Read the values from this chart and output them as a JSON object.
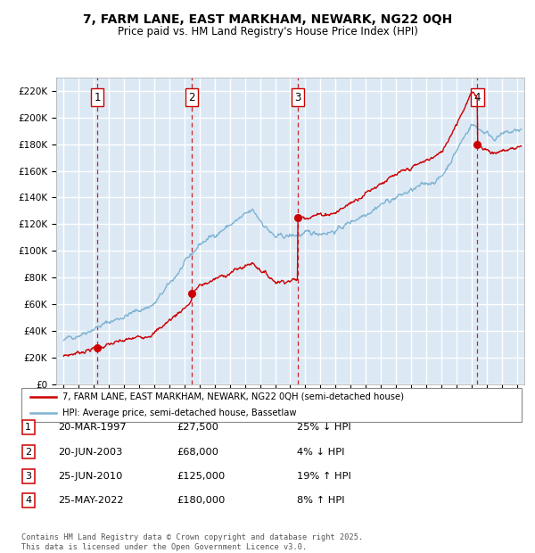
{
  "title": "7, FARM LANE, EAST MARKHAM, NEWARK, NG22 0QH",
  "subtitle": "Price paid vs. HM Land Registry's House Price Index (HPI)",
  "red_label": "7, FARM LANE, EAST MARKHAM, NEWARK, NG22 0QH (semi-detached house)",
  "blue_label": "HPI: Average price, semi-detached house, Bassetlaw",
  "footnote": "Contains HM Land Registry data © Crown copyright and database right 2025.\nThis data is licensed under the Open Government Licence v3.0.",
  "transactions": [
    {
      "num": 1,
      "date": "20-MAR-1997",
      "price": 27500,
      "pct": "25%",
      "dir": "↓",
      "year": 1997.22
    },
    {
      "num": 2,
      "date": "20-JUN-2003",
      "price": 68000,
      "pct": "4%",
      "dir": "↓",
      "year": 2003.47
    },
    {
      "num": 3,
      "date": "25-JUN-2010",
      "price": 125000,
      "pct": "19%",
      "dir": "↑",
      "year": 2010.48
    },
    {
      "num": 4,
      "date": "25-MAY-2022",
      "price": 180000,
      "pct": "8%",
      "dir": "↑",
      "year": 2022.4
    }
  ],
  "ylim": [
    0,
    230000
  ],
  "xlim_start": 1994.5,
  "xlim_end": 2025.5,
  "plot_bg": "#dce9f5",
  "grid_color": "#ffffff",
  "red_color": "#cc0000",
  "blue_color": "#7fb3d3"
}
